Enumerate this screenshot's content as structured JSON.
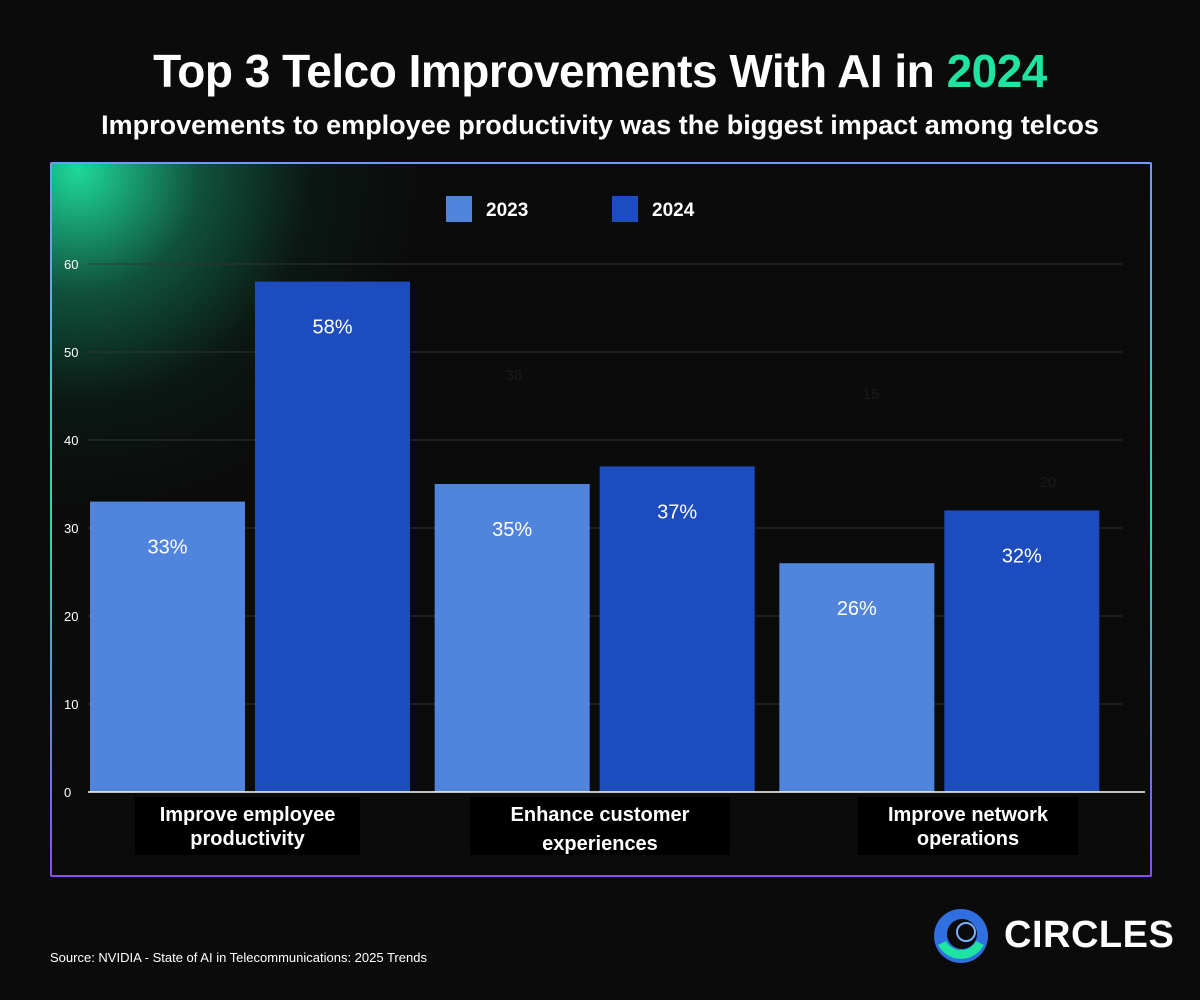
{
  "header": {
    "title_main": "Top 3 Telco Improvements With AI in ",
    "title_accent": "2024",
    "subtitle": "Improvements to employee productivity was the biggest impact among telcos"
  },
  "chart_data": {
    "type": "bar",
    "title": "Top 3 Telco Improvements With AI in 2024",
    "categories": [
      "Improve employee productivity",
      "Enhance customer experiences",
      "Improve network operations"
    ],
    "category_lines": [
      [
        "Improve employee",
        "productivity"
      ],
      [
        "Enhance customer",
        "experiences"
      ],
      [
        "Improve network",
        "operations"
      ]
    ],
    "series": [
      {
        "name": "2023",
        "color": "#5185dd",
        "values": [
          33,
          35,
          26
        ],
        "labels": [
          "33%",
          "35%",
          "26%"
        ]
      },
      {
        "name": "2024",
        "color": "#1c4cbd",
        "values": [
          58,
          37,
          32
        ],
        "labels": [
          "58%",
          "37%",
          "32%"
        ]
      }
    ],
    "stray_labels": [
      "38",
      "15",
      "20"
    ],
    "yticks": [
      "0",
      "10",
      "20",
      "30",
      "40",
      "50",
      "60"
    ],
    "ylim": [
      0,
      60
    ],
    "grid": true,
    "legend": "top-center",
    "xlabel": "",
    "ylabel": ""
  },
  "colors": {
    "background": "#0b0b0b",
    "accent": "#1fe3a0",
    "logo_ring_blue": "#2f6fe0",
    "logo_ring_green": "#1fe3a0"
  },
  "brand": {
    "logo_icon": "circles-logo-icon",
    "name": "CIRCLES"
  },
  "footer": {
    "source": "Source: NVIDIA - State of AI in Telecommunications: 2025 Trends"
  }
}
